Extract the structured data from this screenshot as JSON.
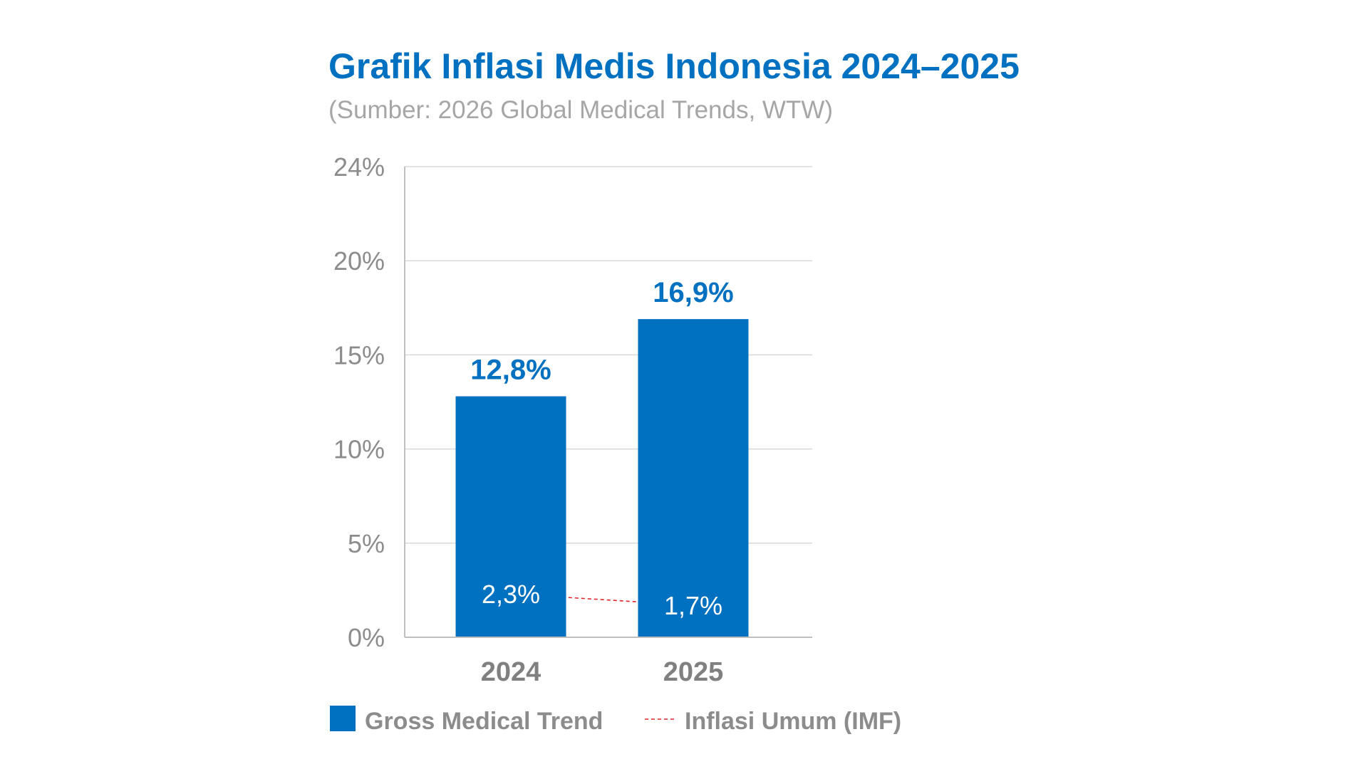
{
  "chart_data": {
    "type": "bar",
    "title": "Grafik Inflasi Medis Indonesia 2024–2025",
    "subtitle": "(Sumber: 2026 Global Medical Trends, WTW)",
    "categories": [
      "2024",
      "2025"
    ],
    "series": [
      {
        "name": "Gross Medical Trend",
        "type": "bar",
        "values": [
          12.8,
          16.9
        ],
        "labels": [
          "12,8%",
          "16,9%"
        ],
        "color": "#0070C0"
      },
      {
        "name": "Inflasi Umum (IMF)",
        "type": "line",
        "line_style": "dashed",
        "values": [
          2.3,
          1.7
        ],
        "labels": [
          "2,3%",
          "1,7%"
        ],
        "color": "#E0262A"
      }
    ],
    "y_ticks": [
      "0%",
      "5%",
      "10%",
      "15%",
      "20%",
      "24%"
    ],
    "ylim": [
      0,
      25
    ],
    "grid": true,
    "legend": "bottom-left"
  }
}
